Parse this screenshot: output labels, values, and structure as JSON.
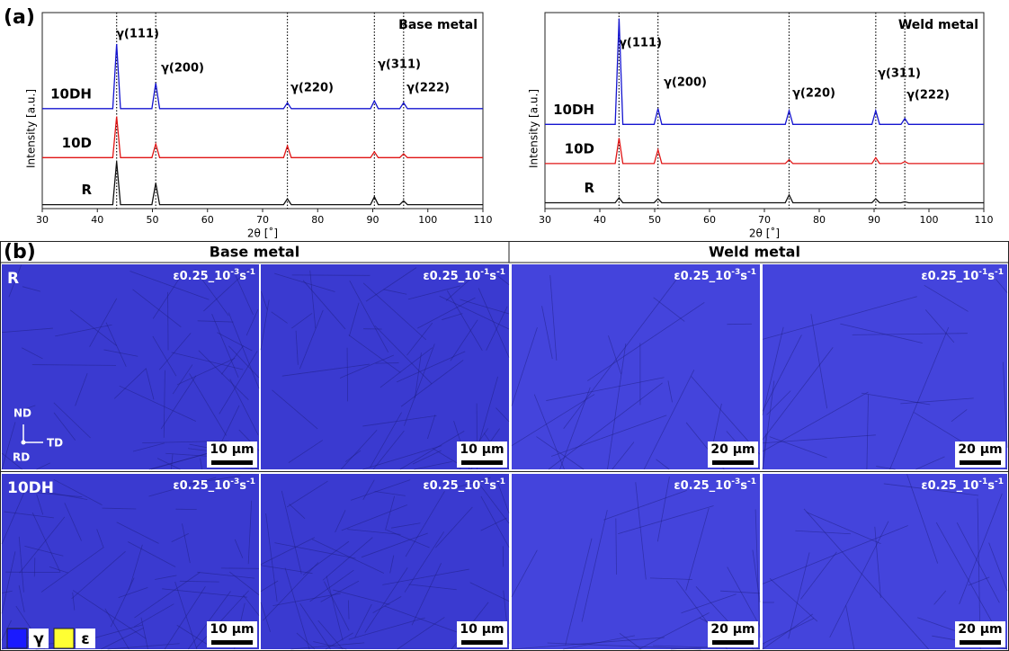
{
  "chart_data": [
    {
      "type": "line",
      "corner_title": "Base metal",
      "xlabel": "2θ [˚]",
      "ylabel": "Intensity [a.u.]",
      "xlim": [
        30,
        110
      ],
      "ylim": [
        0,
        100
      ],
      "xticks": [
        30,
        40,
        50,
        60,
        70,
        80,
        90,
        100,
        110
      ],
      "peaks": [
        {
          "label": "γ(111)",
          "x": 43.5
        },
        {
          "label": "γ(200)",
          "x": 50.6
        },
        {
          "label": "γ(220)",
          "x": 74.5
        },
        {
          "label": "γ(311)",
          "x": 90.3
        },
        {
          "label": "γ(222)",
          "x": 95.6
        }
      ],
      "x": [
        30,
        42.8,
        43.5,
        44.2,
        49.9,
        50.6,
        51.3,
        73.8,
        74.5,
        75.2,
        89.6,
        90.3,
        91,
        94.9,
        95.6,
        96.3,
        110
      ],
      "series": [
        {
          "name": "10DH",
          "color": "#1515d0",
          "values": [
            51,
            51,
            84,
            51,
            51,
            64,
            51,
            51,
            54,
            51,
            51,
            55,
            51,
            51,
            54,
            51,
            51
          ]
        },
        {
          "name": "10D",
          "color": "#e01515",
          "values": [
            26,
            26,
            47,
            26,
            26,
            33,
            26,
            26,
            32,
            26,
            26,
            29,
            26,
            26,
            28,
            26,
            26
          ]
        },
        {
          "name": "R",
          "color": "#111111",
          "values": [
            2,
            2,
            24,
            2,
            2,
            13,
            2,
            2,
            5,
            2,
            2,
            6,
            2,
            2,
            4,
            2,
            2
          ]
        }
      ]
    },
    {
      "type": "line",
      "corner_title": "Weld metal",
      "xlabel": "2θ [˚]",
      "ylabel": "Intensity [a.u.]",
      "xlim": [
        30,
        110
      ],
      "ylim": [
        0,
        100
      ],
      "xticks": [
        30,
        40,
        50,
        60,
        70,
        80,
        90,
        100,
        110
      ],
      "peaks": [
        {
          "label": "γ(111)",
          "x": 43.5
        },
        {
          "label": "γ(200)",
          "x": 50.6
        },
        {
          "label": "γ(220)",
          "x": 74.5
        },
        {
          "label": "γ(311)",
          "x": 90.3
        },
        {
          "label": "γ(222)",
          "x": 95.6
        }
      ],
      "x": [
        30,
        42.8,
        43.5,
        44.2,
        49.9,
        50.6,
        51.3,
        73.8,
        74.5,
        75.2,
        89.6,
        90.3,
        91,
        94.9,
        95.6,
        96.3,
        110
      ],
      "series": [
        {
          "name": "10DH",
          "color": "#1515d0",
          "values": [
            43,
            43,
            97,
            43,
            43,
            51,
            43,
            43,
            50,
            43,
            43,
            50,
            43,
            43,
            46,
            43,
            43
          ]
        },
        {
          "name": "10D",
          "color": "#e01515",
          "values": [
            23,
            23,
            36,
            23,
            23,
            30,
            23,
            23,
            25,
            23,
            23,
            26,
            23,
            23,
            24,
            23,
            23
          ]
        },
        {
          "name": "R",
          "color": "#111111",
          "values": [
            3,
            3,
            5.5,
            3,
            3,
            5,
            3,
            3,
            7,
            3,
            3,
            5,
            3,
            3,
            3.5,
            3,
            3
          ]
        }
      ]
    }
  ],
  "panel_a_label": "(a)",
  "panel_b": {
    "label": "(b)",
    "columns": [
      "Base metal",
      "Weld metal"
    ],
    "rows": [
      {
        "label": "R",
        "cells": [
          {
            "strain": "ε0.25_10",
            "rate_exp": "-3",
            "unit": "s",
            "unit_exp": "-1",
            "scale_bar": "10 μm"
          },
          {
            "strain": "ε0.25_10",
            "rate_exp": "-1",
            "unit": "s",
            "unit_exp": "-1",
            "scale_bar": "10 μm"
          },
          {
            "strain": "ε0.25_10",
            "rate_exp": "-3",
            "unit": "s",
            "unit_exp": "-1",
            "scale_bar": "20 μm"
          },
          {
            "strain": "ε0.25_10",
            "rate_exp": "-1",
            "unit": "s",
            "unit_exp": "-1",
            "scale_bar": "20 μm"
          }
        ]
      },
      {
        "label": "10DH",
        "cells": [
          {
            "strain": "ε0.25_10",
            "rate_exp": "-3",
            "unit": "s",
            "unit_exp": "-1",
            "scale_bar": "10 μm"
          },
          {
            "strain": "ε0.25_10",
            "rate_exp": "-1",
            "unit": "s",
            "unit_exp": "-1",
            "scale_bar": "10 μm"
          },
          {
            "strain": "ε0.25_10",
            "rate_exp": "-3",
            "unit": "s",
            "unit_exp": "-1",
            "scale_bar": "20 μm"
          },
          {
            "strain": "ε0.25_10",
            "rate_exp": "-1",
            "unit": "s",
            "unit_exp": "-1",
            "scale_bar": "20 μm"
          }
        ]
      }
    ],
    "axes": {
      "nd": "ND",
      "td": "TD",
      "rd": "RD"
    },
    "phase_legend": [
      {
        "name": "γ",
        "color": "#1a1aff"
      },
      {
        "name": "ε",
        "color": "#ffff33"
      }
    ]
  }
}
